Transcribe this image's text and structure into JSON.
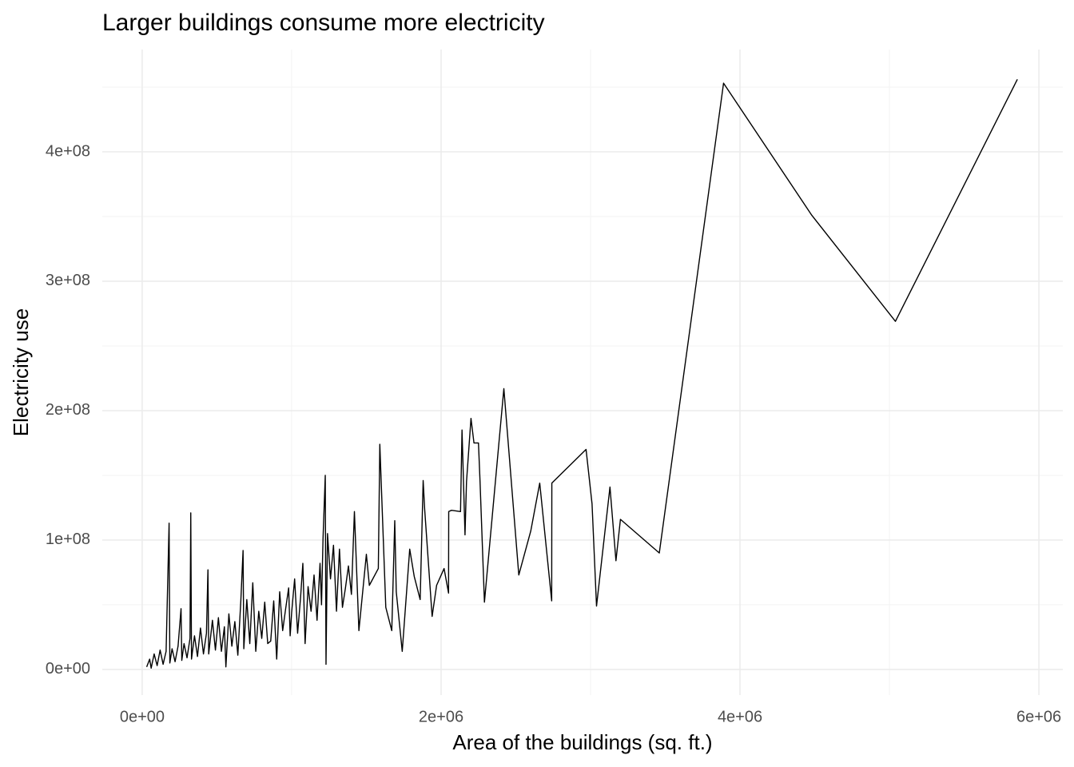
{
  "chart_data": {
    "type": "line",
    "title": "Larger buildings consume more electricity",
    "x_label": "Area of the buildings (sq. ft.)",
    "y_label": "Electricity use",
    "color": "#000000",
    "grid": true,
    "xlim": [
      -267000,
      6160000
    ],
    "ylim": [
      -19800000,
      479000000
    ],
    "xticks": [
      {
        "value": 0,
        "label": "0e+00"
      },
      {
        "value": 2000000,
        "label": "2e+06"
      },
      {
        "value": 4000000,
        "label": "4e+06"
      },
      {
        "value": 6000000,
        "label": "6e+06"
      }
    ],
    "yticks": [
      {
        "value": 0,
        "label": "0e+00"
      },
      {
        "value": 100000000,
        "label": "1e+08"
      },
      {
        "value": 200000000,
        "label": "2e+08"
      },
      {
        "value": 300000000,
        "label": "3e+08"
      },
      {
        "value": 400000000,
        "label": "4e+08"
      }
    ],
    "x_minor_ticks": [
      1000000,
      3000000,
      5000000
    ],
    "y_minor_ticks": [
      50000000,
      150000000,
      250000000,
      350000000,
      450000000
    ],
    "x": [
      30000,
      50000,
      60000,
      80000,
      100000,
      120000,
      140000,
      160000,
      180000,
      185000,
      200000,
      220000,
      240000,
      260000,
      265000,
      280000,
      300000,
      320000,
      325000,
      330000,
      350000,
      370000,
      390000,
      410000,
      430000,
      440000,
      445000,
      470000,
      490000,
      510000,
      530000,
      550000,
      560000,
      580000,
      600000,
      620000,
      640000,
      660000,
      675000,
      680000,
      700000,
      720000,
      740000,
      760000,
      780000,
      800000,
      820000,
      840000,
      860000,
      880000,
      900000,
      920000,
      940000,
      960000,
      980000,
      990000,
      1000000,
      1020000,
      1040000,
      1060000,
      1075000,
      1090000,
      1110000,
      1130000,
      1150000,
      1170000,
      1190000,
      1200000,
      1210000,
      1225000,
      1230000,
      1240000,
      1260000,
      1280000,
      1300000,
      1320000,
      1340000,
      1360000,
      1380000,
      1400000,
      1420000,
      1450000,
      1500000,
      1520000,
      1580000,
      1590000,
      1630000,
      1670000,
      1690000,
      1700000,
      1740000,
      1790000,
      1820000,
      1860000,
      1880000,
      1890000,
      1940000,
      1970000,
      2020000,
      2050000,
      2051000,
      2070000,
      2130000,
      2140000,
      2160000,
      2170000,
      2200000,
      2220000,
      2250000,
      2260000,
      2290000,
      2420000,
      2520000,
      2600000,
      2660000,
      2740000,
      2741000,
      2970000,
      3010000,
      3040000,
      3130000,
      3170000,
      3200000,
      3460000,
      3890000,
      4480000,
      5040000,
      5856000
    ],
    "values": [
      2000000,
      8000000,
      1000000,
      12000000,
      3000000,
      15000000,
      4000000,
      14000000,
      113000000,
      5000000,
      16000000,
      6000000,
      18000000,
      47000000,
      7000000,
      20000000,
      9000000,
      24000000,
      121000000,
      8000000,
      26000000,
      10000000,
      32000000,
      12000000,
      28000000,
      77000000,
      12000000,
      38000000,
      15000000,
      40000000,
      14000000,
      33000000,
      2000000,
      43000000,
      18000000,
      37000000,
      11000000,
      53000000,
      92000000,
      16000000,
      54000000,
      20000000,
      67000000,
      14000000,
      45000000,
      24000000,
      52000000,
      20000000,
      22000000,
      53000000,
      8000000,
      60000000,
      30000000,
      47000000,
      63000000,
      26000000,
      44000000,
      70000000,
      28000000,
      56000000,
      82000000,
      20000000,
      64000000,
      45000000,
      73000000,
      38000000,
      82000000,
      50000000,
      101000000,
      150000000,
      4000000,
      105000000,
      70000000,
      96000000,
      45000000,
      93000000,
      48000000,
      63000000,
      80000000,
      58000000,
      122000000,
      30000000,
      89000000,
      65000000,
      78000000,
      174000000,
      48000000,
      30000000,
      115000000,
      60000000,
      14000000,
      93000000,
      72000000,
      54000000,
      146000000,
      124000000,
      41000000,
      65000000,
      78000000,
      59000000,
      122000000,
      123000000,
      122000000,
      185000000,
      104000000,
      145000000,
      194000000,
      175000000,
      175000000,
      147000000,
      52000000,
      217000000,
      73000000,
      107000000,
      144000000,
      53000000,
      144000000,
      170000000,
      128000000,
      49000000,
      141000000,
      84000000,
      116000000,
      90000000,
      453000000,
      351000000,
      269000000,
      456000000
    ]
  }
}
